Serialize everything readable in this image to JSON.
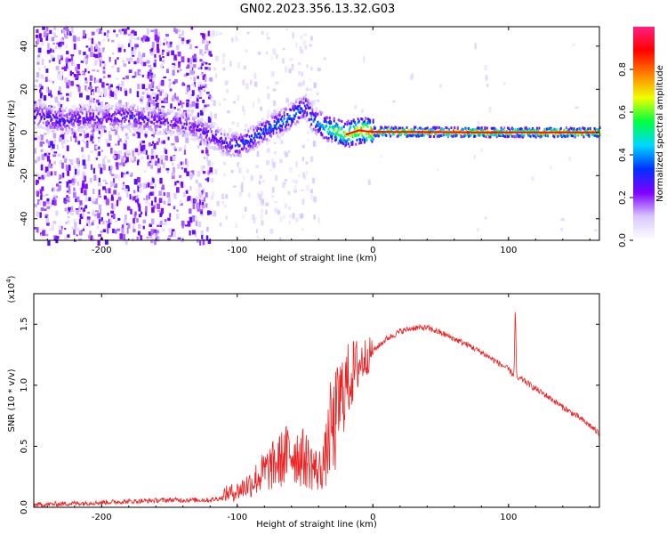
{
  "title": "GN02.2023.356.13.32.G03",
  "chart_data": [
    {
      "type": "heatmap",
      "xlabel": "Height of straight line (km)",
      "ylabel": "Frequency (Hz)",
      "xlim": [
        -250,
        167
      ],
      "ylim": [
        -50,
        49
      ],
      "xticks": [
        -200,
        -100,
        0,
        100
      ],
      "yticks": [
        -40,
        -20,
        0,
        20,
        40
      ],
      "colorbar": {
        "label": "Normalized spectral amplitude",
        "range": [
          0,
          1
        ],
        "ticks": [
          0.0,
          0.2,
          0.4,
          0.6,
          0.8
        ],
        "tick_labels": [
          "0.0",
          "0.2",
          "0.4",
          "0.6",
          "0.8"
        ],
        "colors": [
          "#ffffff",
          "#d9c8ff",
          "#8000ff",
          "#0030ff",
          "#00d8ff",
          "#00ff40",
          "#f0ff00",
          "#ff8000",
          "#ff0000",
          "#ff2080"
        ]
      },
      "ridge": {
        "x": [
          -245,
          -230,
          -215,
          -200,
          -185,
          -170,
          -155,
          -140,
          -130,
          -125,
          -118,
          -110,
          -100,
          -90,
          -80,
          -70,
          -60,
          -55,
          -50,
          -45,
          -40,
          -35,
          -30,
          -25,
          -20,
          -15,
          -10,
          -5,
          0,
          30,
          60,
          90,
          92,
          120,
          150,
          167
        ],
        "freq": [
          8,
          5,
          7,
          6,
          8,
          6,
          5,
          4,
          2,
          0,
          -2,
          -5,
          -6,
          -3,
          1,
          4,
          8,
          10,
          12,
          6,
          4,
          2,
          1,
          0,
          -1,
          0,
          1,
          0.5,
          0.3,
          0.2,
          0.1,
          0,
          0,
          0,
          0,
          0
        ],
        "amplitude": [
          0.3,
          0.3,
          0.28,
          0.27,
          0.3,
          0.28,
          0.27,
          0.26,
          0.25,
          0.3,
          0.28,
          0.3,
          0.35,
          0.36,
          0.38,
          0.4,
          0.42,
          0.4,
          0.36,
          0.4,
          0.45,
          0.55,
          0.6,
          0.7,
          0.7,
          0.75,
          0.8,
          0.82,
          0.85,
          0.85,
          0.86,
          0.85,
          0.7,
          0.85,
          0.82,
          0.8
        ]
      }
    },
    {
      "type": "line",
      "xlabel": "Height of straight line (km)",
      "ylabel": "SNR (10 * v/v)",
      "scale_label": "(x10",
      "scale_exponent": "4",
      "scale_suffix": ")",
      "xlim": [
        -250,
        167
      ],
      "ylim": [
        0,
        1.75
      ],
      "xticks": [
        -200,
        -100,
        0,
        100
      ],
      "yticks": [
        0.0,
        0.5,
        1.0,
        1.5
      ],
      "ytick_labels": [
        "0.0",
        "0.5",
        "1.0",
        "1.5"
      ],
      "color": "#ee2222",
      "x": [
        -250,
        -200,
        -150,
        -120,
        -100,
        -90,
        -80,
        -70,
        -60,
        -50,
        -40,
        -35,
        -30,
        -25,
        -20,
        -15,
        -10,
        0,
        10,
        20,
        30,
        40,
        50,
        60,
        70,
        80,
        90,
        100,
        104,
        105,
        106,
        110,
        120,
        130,
        140,
        150,
        160,
        167
      ],
      "values": [
        0.02,
        0.04,
        0.06,
        0.06,
        0.1,
        0.15,
        0.22,
        0.28,
        0.35,
        0.3,
        0.22,
        0.3,
        0.55,
        0.85,
        1.0,
        1.1,
        1.18,
        1.28,
        1.38,
        1.44,
        1.47,
        1.47,
        1.43,
        1.38,
        1.33,
        1.27,
        1.2,
        1.13,
        1.08,
        1.65,
        1.05,
        1.05,
        0.97,
        0.9,
        0.82,
        0.75,
        0.67,
        0.6
      ]
    }
  ]
}
